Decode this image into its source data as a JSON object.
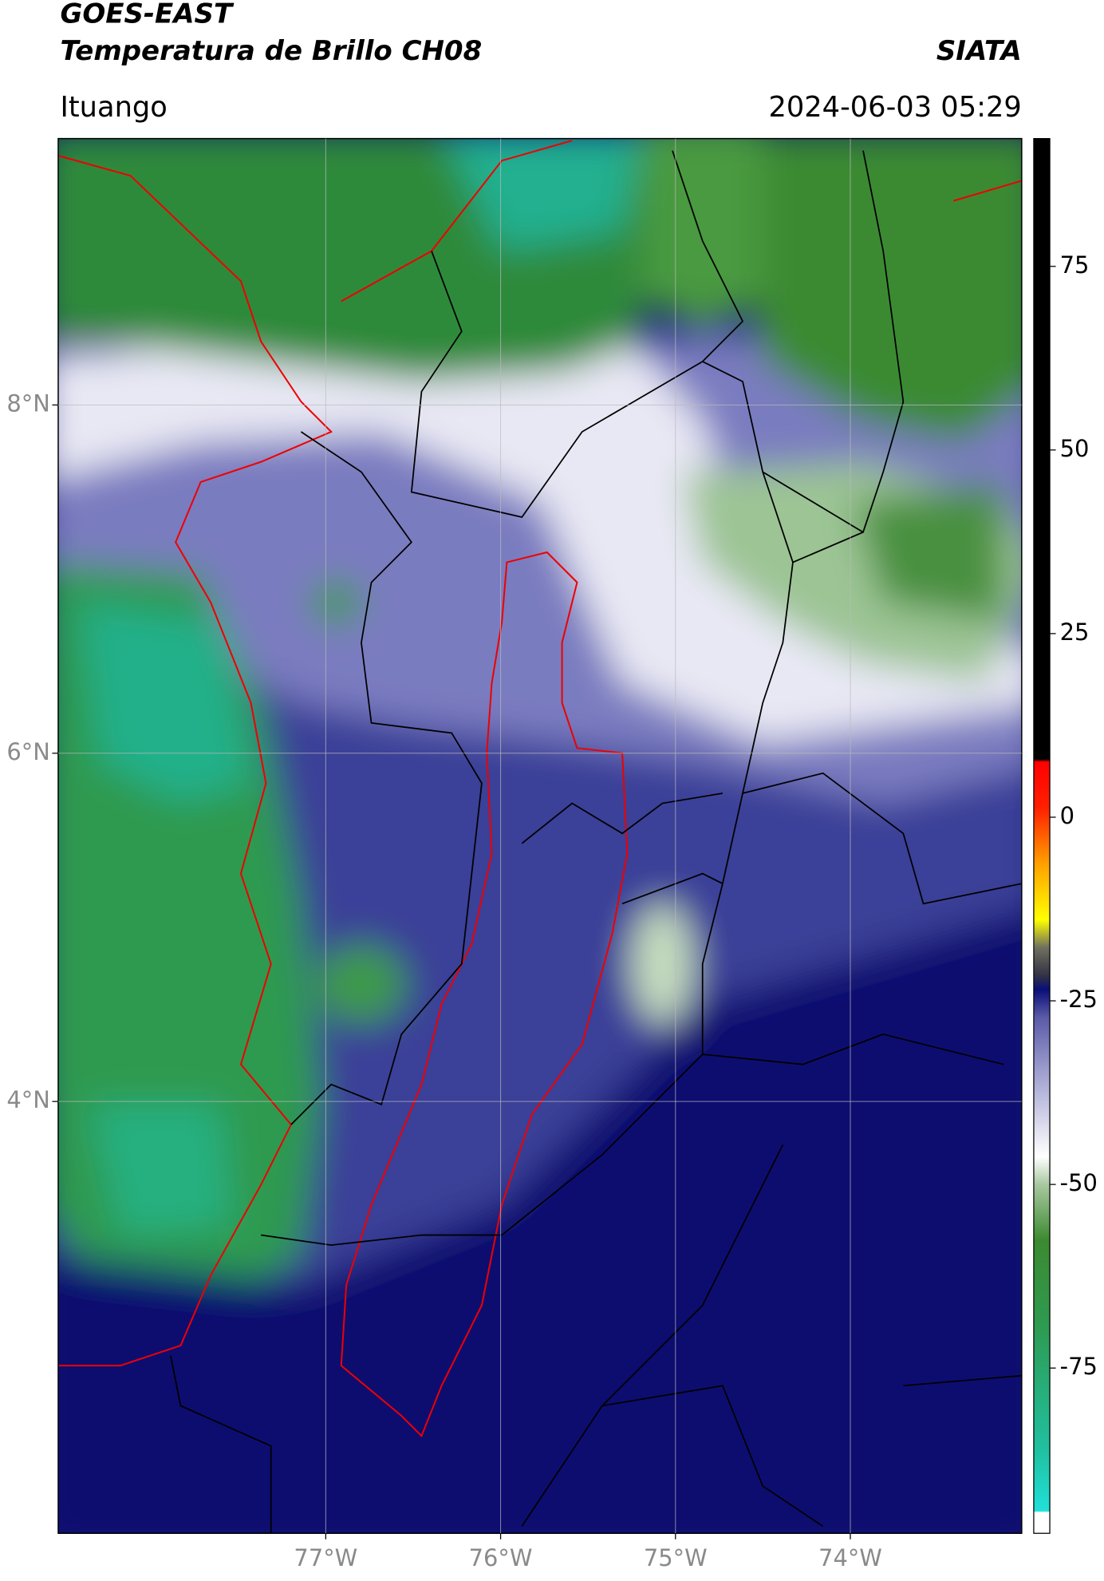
{
  "chart_data": {
    "type": "map",
    "title": "GOES-EAST",
    "subtitle": "Temperatura de Brillo CH08",
    "source": "SIATA",
    "location": "Ituango",
    "datetime": "2024-06-03 05:29",
    "xlim": [
      -78.53,
      -73.02
    ],
    "ylim": [
      1.52,
      9.53
    ],
    "xticks": [
      {
        "value": -77,
        "label": "77°W"
      },
      {
        "value": -76,
        "label": "76°W"
      },
      {
        "value": -75,
        "label": "75°W"
      },
      {
        "value": -74,
        "label": "74°W"
      }
    ],
    "yticks": [
      {
        "value": 8,
        "label": "8°N"
      },
      {
        "value": 6,
        "label": "6°N"
      },
      {
        "value": 4,
        "label": "4°N"
      }
    ],
    "grid": true,
    "colorbar": {
      "lim": [
        -97.5,
        92.4
      ],
      "ticks": [
        75,
        50,
        25,
        0,
        -25,
        -50,
        -75
      ]
    }
  }
}
